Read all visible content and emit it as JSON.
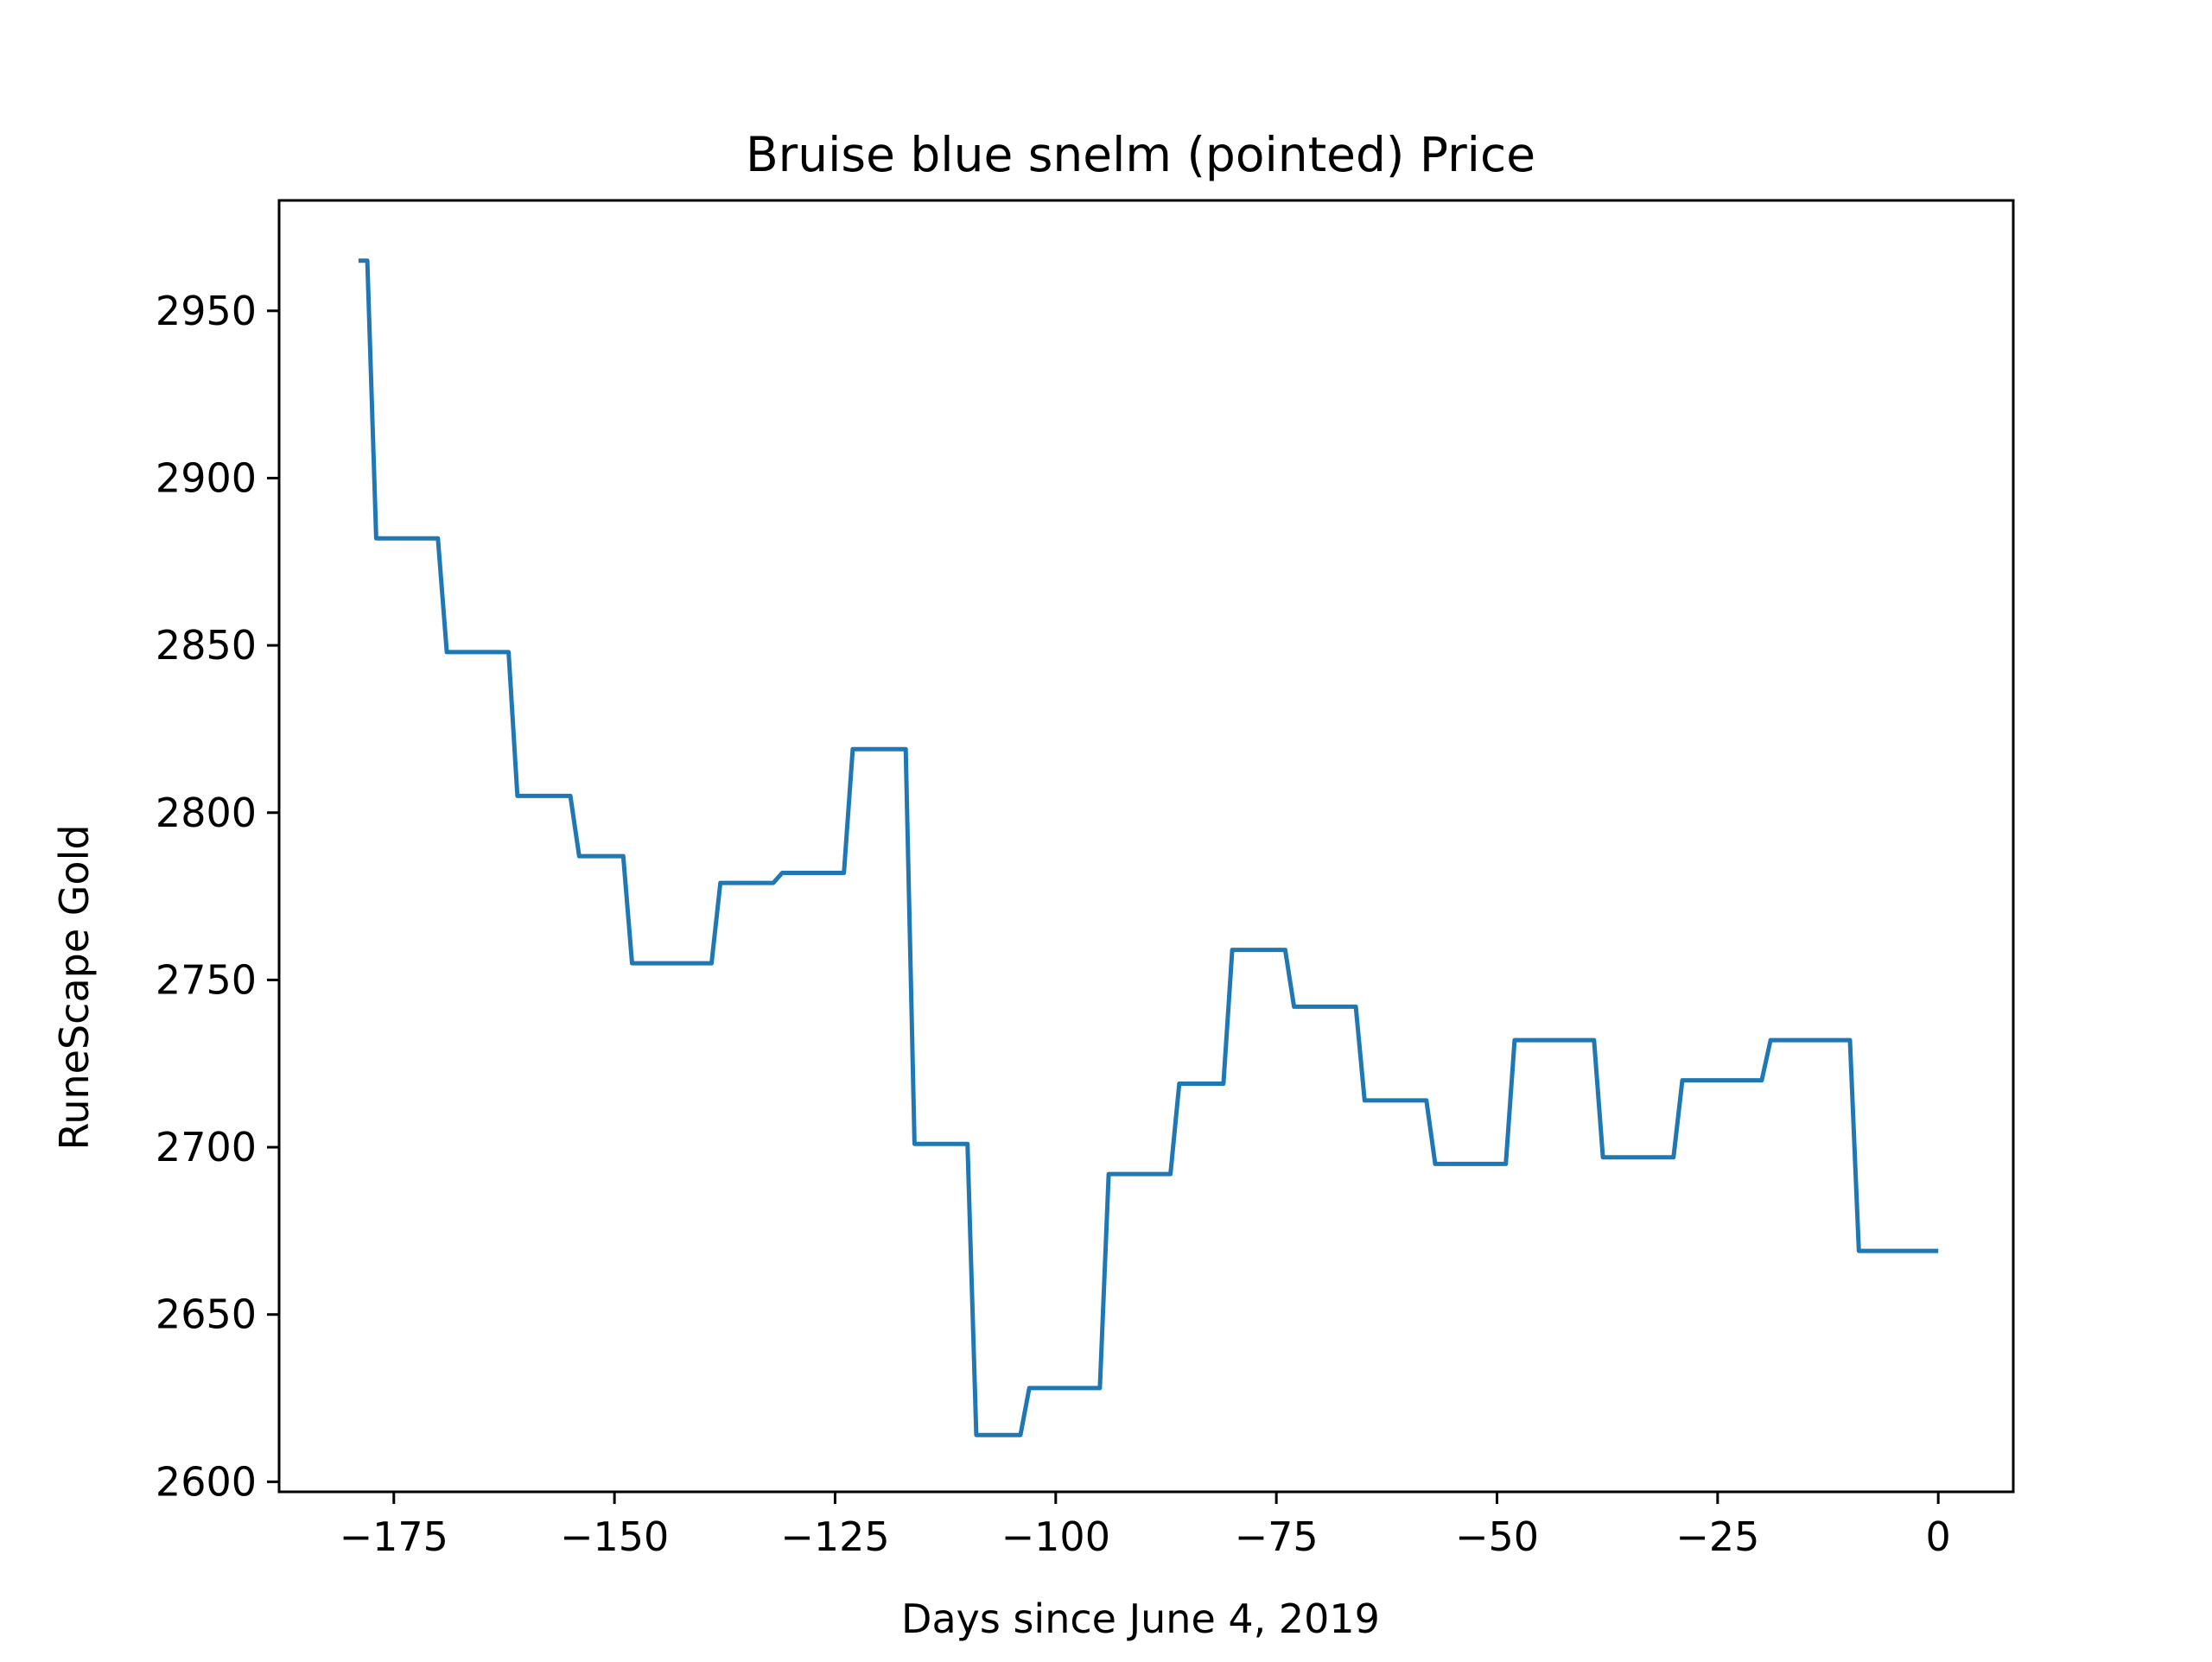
{
  "chart_data": {
    "type": "line",
    "title": "Bruise blue snelm (pointed) Price",
    "xlabel": "Days since June 4, 2019",
    "ylabel": "RuneScape Gold",
    "xlim": [
      -188,
      8.5
    ],
    "ylim": [
      2597,
      2983
    ],
    "xticks": [
      -175,
      -150,
      -125,
      -100,
      -75,
      -50,
      -25,
      0
    ],
    "xtick_labels": [
      "−175",
      "−150",
      "−125",
      "−100",
      "−75",
      "−50",
      "−25",
      "0"
    ],
    "yticks": [
      2600,
      2650,
      2700,
      2750,
      2800,
      2850,
      2900,
      2950
    ],
    "ytick_labels": [
      "2600",
      "2650",
      "2700",
      "2750",
      "2800",
      "2850",
      "2900",
      "2950"
    ],
    "grid": false,
    "series": [
      {
        "color": "#1f77b4",
        "x": [
          -179,
          -178,
          -177,
          -176,
          -175,
          -174,
          -173,
          -172,
          -171,
          -170,
          -169,
          -168,
          -167,
          -166,
          -165,
          -164,
          -163,
          -162,
          -161,
          -160,
          -159,
          -158,
          -157,
          -156,
          -155,
          -154,
          -153,
          -152,
          -151,
          -150,
          -149,
          -148,
          -147,
          -146,
          -145,
          -144,
          -143,
          -142,
          -141,
          -140,
          -139,
          -138,
          -137,
          -136,
          -135,
          -134,
          -133,
          -132,
          -131,
          -130,
          -129,
          -128,
          -127,
          -126,
          -125,
          -124,
          -123,
          -122,
          -121,
          -120,
          -119,
          -118,
          -117,
          -116,
          -115,
          -114,
          -113,
          -112,
          -111,
          -110,
          -109,
          -108,
          -107,
          -106,
          -105,
          -104,
          -103,
          -102,
          -101,
          -100,
          -99,
          -98,
          -97,
          -96,
          -95,
          -94,
          -93,
          -92,
          -91,
          -90,
          -89,
          -88,
          -87,
          -86,
          -85,
          -84,
          -83,
          -82,
          -81,
          -80,
          -79,
          -78,
          -77,
          -76,
          -75,
          -74,
          -73,
          -72,
          -71,
          -70,
          -69,
          -68,
          -67,
          -66,
          -65,
          -64,
          -63,
          -62,
          -61,
          -60,
          -59,
          -58,
          -57,
          -56,
          -55,
          -54,
          -53,
          -52,
          -51,
          -50,
          -49,
          -48,
          -47,
          -46,
          -45,
          -44,
          -43,
          -42,
          -41,
          -40,
          -39,
          -38,
          -37,
          -36,
          -35,
          -34,
          -33,
          -32,
          -31,
          -30,
          -29,
          -28,
          -27,
          -26,
          -25,
          -24,
          -23,
          -22,
          -21,
          -20,
          -19,
          -18,
          -17,
          -16,
          -15,
          -14,
          -13,
          -12,
          -11,
          -10,
          -9,
          -8,
          -7,
          -6,
          -5,
          -4,
          -3,
          -2,
          -1,
          0
        ],
        "values": [
          2965,
          2965,
          2882,
          2882,
          2882,
          2882,
          2882,
          2882,
          2882,
          2882,
          2848,
          2848,
          2848,
          2848,
          2848,
          2848,
          2848,
          2848,
          2805,
          2805,
          2805,
          2805,
          2805,
          2805,
          2805,
          2787,
          2787,
          2787,
          2787,
          2787,
          2787,
          2755,
          2755,
          2755,
          2755,
          2755,
          2755,
          2755,
          2755,
          2755,
          2755,
          2779,
          2779,
          2779,
          2779,
          2779,
          2779,
          2779,
          2782,
          2782,
          2782,
          2782,
          2782,
          2782,
          2782,
          2782,
          2819,
          2819,
          2819,
          2819,
          2819,
          2819,
          2819,
          2701,
          2701,
          2701,
          2701,
          2701,
          2701,
          2701,
          2614,
          2614,
          2614,
          2614,
          2614,
          2614,
          2628,
          2628,
          2628,
          2628,
          2628,
          2628,
          2628,
          2628,
          2628,
          2692,
          2692,
          2692,
          2692,
          2692,
          2692,
          2692,
          2692,
          2719,
          2719,
          2719,
          2719,
          2719,
          2719,
          2759,
          2759,
          2759,
          2759,
          2759,
          2759,
          2759,
          2742,
          2742,
          2742,
          2742,
          2742,
          2742,
          2742,
          2742,
          2714,
          2714,
          2714,
          2714,
          2714,
          2714,
          2714,
          2714,
          2695,
          2695,
          2695,
          2695,
          2695,
          2695,
          2695,
          2695,
          2695,
          2732,
          2732,
          2732,
          2732,
          2732,
          2732,
          2732,
          2732,
          2732,
          2732,
          2697,
          2697,
          2697,
          2697,
          2697,
          2697,
          2697,
          2697,
          2697,
          2720,
          2720,
          2720,
          2720,
          2720,
          2720,
          2720,
          2720,
          2720,
          2720,
          2732,
          2732,
          2732,
          2732,
          2732,
          2732,
          2732,
          2732,
          2732,
          2732,
          2669,
          2669,
          2669,
          2669,
          2669,
          2669,
          2669,
          2669,
          2669,
          2669
        ]
      }
    ]
  }
}
